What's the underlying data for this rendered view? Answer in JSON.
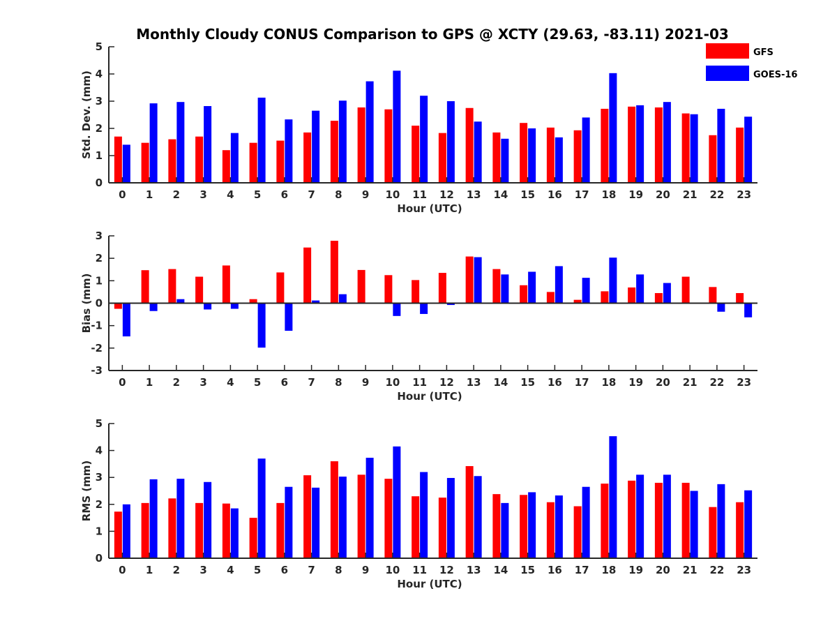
{
  "figure": {
    "title": "Monthly Cloudy CONUS Comparison to GPS @ XCTY (29.63, -83.11) 2021-03",
    "legend_position": "top-right"
  },
  "chart_data": [
    {
      "type": "bar",
      "xlabel": "Hour (UTC)",
      "ylabel": "Std. Dev. (mm)",
      "ylim": [
        0,
        5
      ],
      "yticks": [
        0,
        1,
        2,
        3,
        4,
        5
      ],
      "grid": false,
      "categories": [
        "0",
        "1",
        "2",
        "3",
        "4",
        "5",
        "6",
        "7",
        "8",
        "9",
        "10",
        "11",
        "12",
        "13",
        "14",
        "15",
        "16",
        "17",
        "18",
        "19",
        "20",
        "21",
        "22",
        "23"
      ],
      "series": [
        {
          "name": "GFS",
          "color": "#ff0000",
          "values": [
            1.7,
            1.47,
            1.6,
            1.7,
            1.2,
            1.47,
            1.55,
            1.85,
            2.28,
            2.77,
            2.7,
            2.1,
            1.83,
            2.75,
            1.85,
            2.2,
            2.03,
            1.93,
            2.72,
            2.8,
            2.77,
            2.55,
            1.75,
            2.03
          ]
        },
        {
          "name": "GOES-16",
          "color": "#0000ff",
          "values": [
            1.4,
            2.92,
            2.97,
            2.82,
            1.83,
            3.13,
            2.33,
            2.65,
            3.02,
            3.73,
            4.12,
            3.2,
            3.0,
            2.25,
            1.62,
            2.0,
            1.67,
            2.4,
            4.03,
            2.85,
            2.97,
            2.52,
            2.72,
            2.43
          ]
        }
      ]
    },
    {
      "type": "bar",
      "xlabel": "Hour (UTC)",
      "ylabel": "Bias (mm)",
      "ylim": [
        -3,
        3
      ],
      "yticks": [
        -3,
        -2,
        -1,
        0,
        1,
        2,
        3
      ],
      "grid": false,
      "categories": [
        "0",
        "1",
        "2",
        "3",
        "4",
        "5",
        "6",
        "7",
        "8",
        "9",
        "10",
        "11",
        "12",
        "13",
        "14",
        "15",
        "16",
        "17",
        "18",
        "19",
        "20",
        "21",
        "22",
        "23"
      ],
      "series": [
        {
          "name": "GFS",
          "color": "#ff0000",
          "values": [
            -0.25,
            1.47,
            1.52,
            1.18,
            1.68,
            0.18,
            1.37,
            2.48,
            2.78,
            1.48,
            1.25,
            1.03,
            1.35,
            2.08,
            1.52,
            0.8,
            0.5,
            0.15,
            0.53,
            0.7,
            0.45,
            1.18,
            0.72,
            0.45
          ]
        },
        {
          "name": "GOES-16",
          "color": "#0000ff",
          "values": [
            -1.48,
            -0.35,
            0.18,
            -0.28,
            -0.25,
            -1.98,
            -1.23,
            0.12,
            0.4,
            0.0,
            -0.57,
            -0.48,
            -0.08,
            2.05,
            1.28,
            1.4,
            1.65,
            1.13,
            2.03,
            1.28,
            0.9,
            0.02,
            -0.38,
            -0.63
          ]
        }
      ]
    },
    {
      "type": "bar",
      "xlabel": "Hour (UTC)",
      "ylabel": "RMS (mm)",
      "ylim": [
        0,
        5
      ],
      "yticks": [
        0,
        1,
        2,
        3,
        4,
        5
      ],
      "grid": false,
      "categories": [
        "0",
        "1",
        "2",
        "3",
        "4",
        "5",
        "6",
        "7",
        "8",
        "9",
        "10",
        "11",
        "12",
        "13",
        "14",
        "15",
        "16",
        "17",
        "18",
        "19",
        "20",
        "21",
        "22",
        "23"
      ],
      "series": [
        {
          "name": "GFS",
          "color": "#ff0000",
          "values": [
            1.73,
            2.05,
            2.22,
            2.05,
            2.03,
            1.5,
            2.05,
            3.08,
            3.6,
            3.1,
            2.95,
            2.3,
            2.25,
            3.42,
            2.38,
            2.35,
            2.08,
            1.93,
            2.77,
            2.88,
            2.8,
            2.8,
            1.9,
            2.08
          ]
        },
        {
          "name": "GOES-16",
          "color": "#0000ff",
          "values": [
            2.0,
            2.93,
            2.95,
            2.83,
            1.85,
            3.7,
            2.65,
            2.62,
            3.03,
            3.73,
            4.15,
            3.2,
            2.98,
            3.05,
            2.05,
            2.45,
            2.33,
            2.65,
            4.53,
            3.1,
            3.1,
            2.5,
            2.75,
            2.52
          ]
        }
      ]
    }
  ]
}
